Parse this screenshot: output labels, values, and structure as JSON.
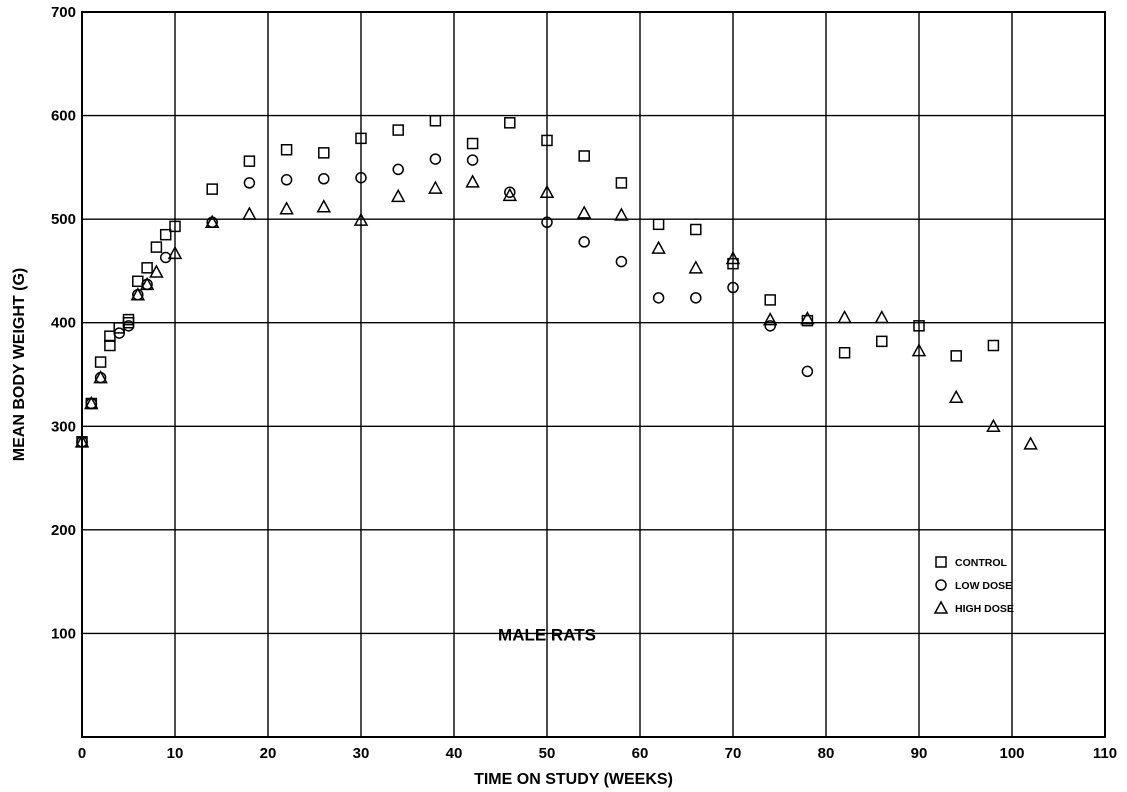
{
  "chart_data": {
    "type": "scatter",
    "title": "",
    "annotation": "MALE RATS",
    "xlabel": "TIME ON STUDY (WEEKS)",
    "ylabel": "MEAN BODY WEIGHT (G)",
    "xlim": [
      0,
      110
    ],
    "ylim": [
      0,
      700
    ],
    "x_ticks": [
      0,
      10,
      20,
      30,
      40,
      50,
      60,
      70,
      80,
      90,
      100,
      110
    ],
    "y_ticks": [
      100,
      200,
      300,
      400,
      500,
      600,
      700
    ],
    "grid": true,
    "legend_position": "lower-right",
    "series": [
      {
        "name": "CONTROL",
        "marker": "square",
        "points": [
          [
            0,
            285
          ],
          [
            1,
            322
          ],
          [
            2,
            362
          ],
          [
            3,
            378
          ],
          [
            3,
            387
          ],
          [
            4,
            395
          ],
          [
            5,
            400
          ],
          [
            5,
            403
          ],
          [
            6,
            440
          ],
          [
            7,
            453
          ],
          [
            8,
            473
          ],
          [
            9,
            485
          ],
          [
            10,
            493
          ],
          [
            14,
            529
          ],
          [
            18,
            556
          ],
          [
            22,
            567
          ],
          [
            26,
            564
          ],
          [
            30,
            578
          ],
          [
            34,
            586
          ],
          [
            38,
            595
          ],
          [
            42,
            573
          ],
          [
            46,
            593
          ],
          [
            50,
            576
          ],
          [
            54,
            561
          ],
          [
            58,
            535
          ],
          [
            62,
            495
          ],
          [
            66,
            490
          ],
          [
            70,
            457
          ],
          [
            74,
            422
          ],
          [
            78,
            402
          ],
          [
            82,
            371
          ],
          [
            86,
            382
          ],
          [
            90,
            397
          ],
          [
            94,
            368
          ],
          [
            98,
            378
          ]
        ]
      },
      {
        "name": "LOW DOSE",
        "marker": "circle",
        "points": [
          [
            0,
            285
          ],
          [
            1,
            322
          ],
          [
            2,
            347
          ],
          [
            4,
            390
          ],
          [
            5,
            397
          ],
          [
            6,
            427
          ],
          [
            7,
            437
          ],
          [
            9,
            463
          ],
          [
            14,
            497
          ],
          [
            18,
            535
          ],
          [
            22,
            538
          ],
          [
            26,
            539
          ],
          [
            30,
            540
          ],
          [
            34,
            548
          ],
          [
            38,
            558
          ],
          [
            42,
            557
          ],
          [
            46,
            526
          ],
          [
            50,
            497
          ],
          [
            54,
            478
          ],
          [
            58,
            459
          ],
          [
            62,
            424
          ],
          [
            66,
            424
          ],
          [
            70,
            434
          ],
          [
            74,
            397
          ],
          [
            78,
            353
          ]
        ]
      },
      {
        "name": "HIGH DOSE",
        "marker": "triangle",
        "points": [
          [
            0,
            285
          ],
          [
            1,
            322
          ],
          [
            2,
            347
          ],
          [
            6,
            427
          ],
          [
            7,
            437
          ],
          [
            8,
            449
          ],
          [
            10,
            467
          ],
          [
            14,
            497
          ],
          [
            18,
            505
          ],
          [
            22,
            510
          ],
          [
            26,
            512
          ],
          [
            30,
            499
          ],
          [
            34,
            522
          ],
          [
            38,
            530
          ],
          [
            42,
            536
          ],
          [
            46,
            523
          ],
          [
            50,
            526
          ],
          [
            54,
            506
          ],
          [
            58,
            504
          ],
          [
            62,
            472
          ],
          [
            66,
            453
          ],
          [
            70,
            462
          ],
          [
            74,
            403
          ],
          [
            78,
            404
          ],
          [
            82,
            405
          ],
          [
            86,
            405
          ],
          [
            90,
            373
          ],
          [
            94,
            328
          ],
          [
            98,
            300
          ],
          [
            102,
            283
          ]
        ]
      }
    ]
  }
}
